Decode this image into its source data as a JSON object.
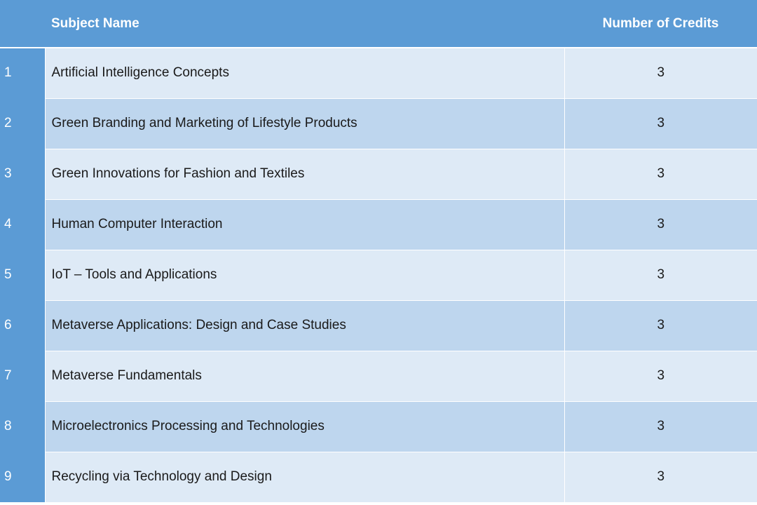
{
  "table": {
    "headers": {
      "index": "",
      "subject": "Subject Name",
      "credits": "Number of Credits"
    },
    "rows": [
      {
        "index": "1",
        "subject": "Artificial Intelligence Concepts",
        "credits": "3"
      },
      {
        "index": "2",
        "subject": "Green Branding and Marketing of Lifestyle Products",
        "credits": "3"
      },
      {
        "index": "3",
        "subject": "Green Innovations for Fashion and Textiles",
        "credits": "3"
      },
      {
        "index": "4",
        "subject": "Human Computer Interaction",
        "credits": "3"
      },
      {
        "index": "5",
        "subject": "IoT – Tools and Applications",
        "credits": "3"
      },
      {
        "index": "6",
        "subject": "Metaverse Applications: Design and Case Studies",
        "credits": "3"
      },
      {
        "index": "7",
        "subject": "Metaverse Fundamentals",
        "credits": "3"
      },
      {
        "index": "8",
        "subject": "Microelectronics Processing and Technologies",
        "credits": "3"
      },
      {
        "index": "9",
        "subject": "Recycling via Technology and Design",
        "credits": "3"
      }
    ]
  },
  "colors": {
    "header_background": "#5b9bd5",
    "row_light": "#deeaf6",
    "row_dark": "#bed6ee"
  }
}
